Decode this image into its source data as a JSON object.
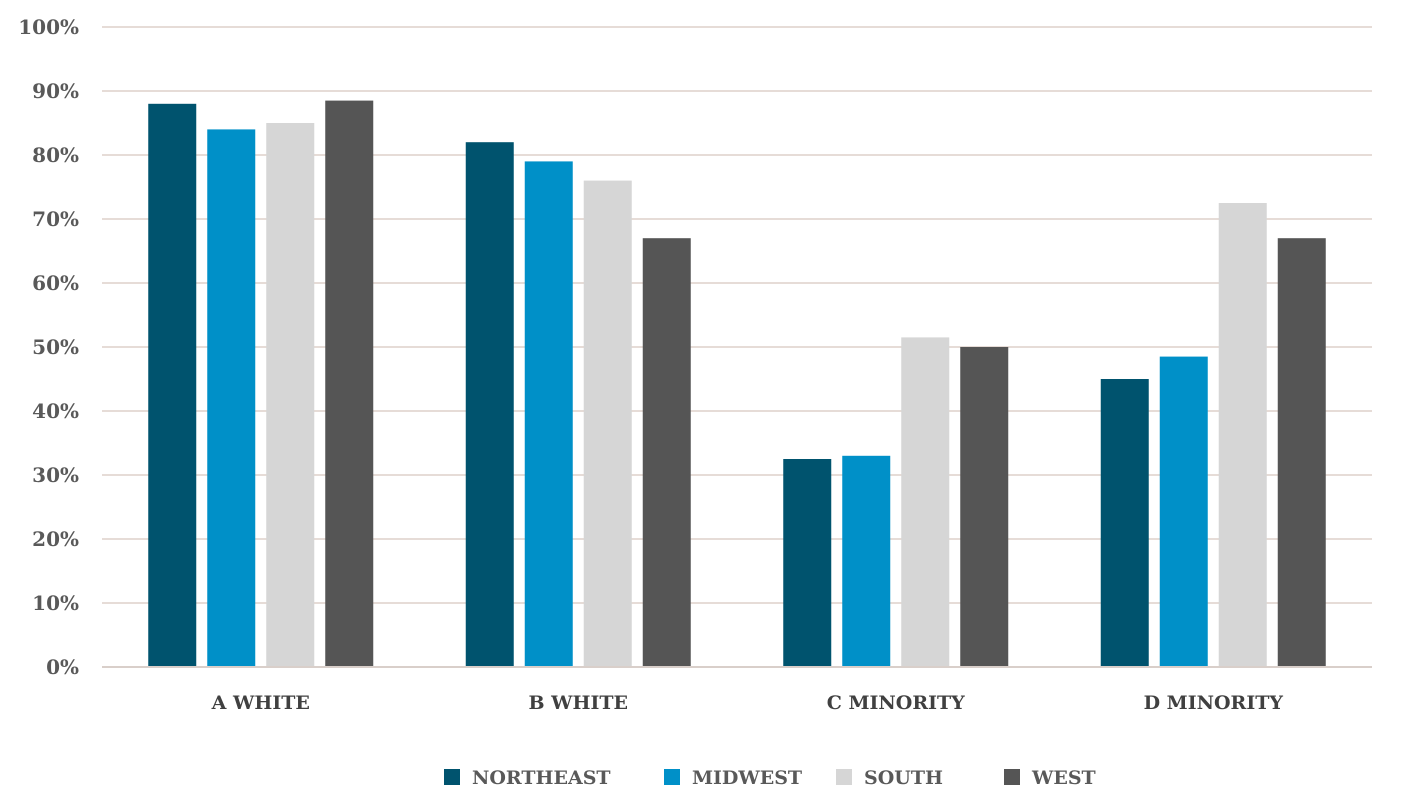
{
  "chart_data": {
    "type": "bar",
    "categories": [
      "A WHITE",
      "B WHITE",
      "C MINORITY",
      "D MINORITY"
    ],
    "series": [
      {
        "name": "NORTHEAST",
        "color": "#00536e",
        "values": [
          88,
          82,
          32.5,
          45
        ]
      },
      {
        "name": "MIDWEST",
        "color": "#0090c8",
        "values": [
          84,
          79,
          33,
          48.5
        ]
      },
      {
        "name": "SOUTH",
        "color": "#d6d6d6",
        "values": [
          85,
          76,
          51.5,
          72.5
        ]
      },
      {
        "name": "WEST",
        "color": "#555555",
        "values": [
          88.5,
          67,
          50,
          67
        ]
      }
    ],
    "ylim": [
      0,
      100
    ],
    "yticks": [
      "0%",
      "10%",
      "20%",
      "30%",
      "40%",
      "50%",
      "60%",
      "70%",
      "80%",
      "90%",
      "100%"
    ],
    "title": "",
    "xlabel": "",
    "ylabel": "",
    "grid": true,
    "legend_position": "bottom"
  }
}
